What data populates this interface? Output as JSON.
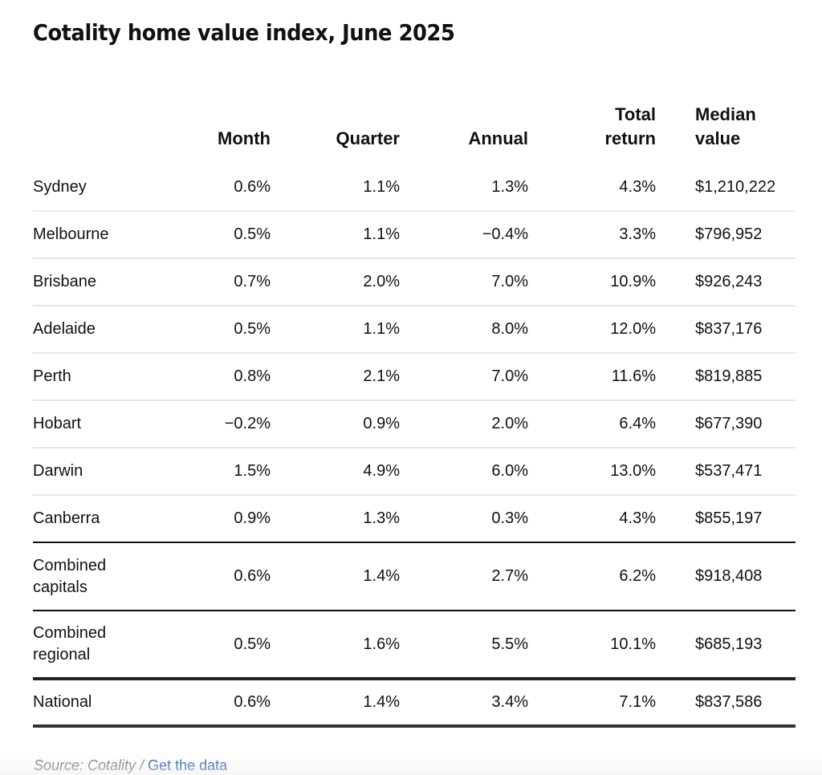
{
  "chart_data": {
    "type": "table",
    "title": "Cotality home value index, June 2025",
    "columns": [
      "",
      "Month",
      "Quarter",
      "Annual",
      "Total return",
      "Median value"
    ],
    "header": {
      "name": "",
      "month": "Month",
      "quarter": "Quarter",
      "annual": "Annual",
      "total_line1": "Total",
      "total_line2": "return",
      "median_line1": "Median",
      "median_line2": "value"
    },
    "rows": [
      {
        "name": "Sydney",
        "name_line1": "Sydney",
        "name_line2": "",
        "month": "0.6%",
        "quarter": "1.1%",
        "annual": "1.3%",
        "total_return": "4.3%",
        "median_value": "$1,210,222"
      },
      {
        "name": "Melbourne",
        "name_line1": "Melbourne",
        "name_line2": "",
        "month": "0.5%",
        "quarter": "1.1%",
        "annual": "−0.4%",
        "total_return": "3.3%",
        "median_value": "$796,952"
      },
      {
        "name": "Brisbane",
        "name_line1": "Brisbane",
        "name_line2": "",
        "month": "0.7%",
        "quarter": "2.0%",
        "annual": "7.0%",
        "total_return": "10.9%",
        "median_value": "$926,243"
      },
      {
        "name": "Adelaide",
        "name_line1": "Adelaide",
        "name_line2": "",
        "month": "0.5%",
        "quarter": "1.1%",
        "annual": "8.0%",
        "total_return": "12.0%",
        "median_value": "$837,176"
      },
      {
        "name": "Perth",
        "name_line1": "Perth",
        "name_line2": "",
        "month": "0.8%",
        "quarter": "2.1%",
        "annual": "7.0%",
        "total_return": "11.6%",
        "median_value": "$819,885"
      },
      {
        "name": "Hobart",
        "name_line1": "Hobart",
        "name_line2": "",
        "month": "−0.2%",
        "quarter": "0.9%",
        "annual": "2.0%",
        "total_return": "6.4%",
        "median_value": "$677,390"
      },
      {
        "name": "Darwin",
        "name_line1": "Darwin",
        "name_line2": "",
        "month": "1.5%",
        "quarter": "4.9%",
        "annual": "6.0%",
        "total_return": "13.0%",
        "median_value": "$537,471"
      },
      {
        "name": "Canberra",
        "name_line1": "Canberra",
        "name_line2": "",
        "month": "0.9%",
        "quarter": "1.3%",
        "annual": "0.3%",
        "total_return": "4.3%",
        "median_value": "$855,197"
      },
      {
        "name": "Combined capitals",
        "name_line1": "Combined",
        "name_line2": "capitals",
        "month": "0.6%",
        "quarter": "1.4%",
        "annual": "2.7%",
        "total_return": "6.2%",
        "median_value": "$918,408"
      },
      {
        "name": "Combined regional",
        "name_line1": "Combined",
        "name_line2": "regional",
        "month": "0.5%",
        "quarter": "1.6%",
        "annual": "5.5%",
        "total_return": "10.1%",
        "median_value": "$685,193"
      },
      {
        "name": "National",
        "name_line1": "National",
        "name_line2": "",
        "month": "0.6%",
        "quarter": "1.4%",
        "annual": "3.4%",
        "total_return": "7.1%",
        "median_value": "$837,586"
      }
    ]
  },
  "footer": {
    "source_text": "Source: Cotality / ",
    "link_label": "Get the data"
  }
}
